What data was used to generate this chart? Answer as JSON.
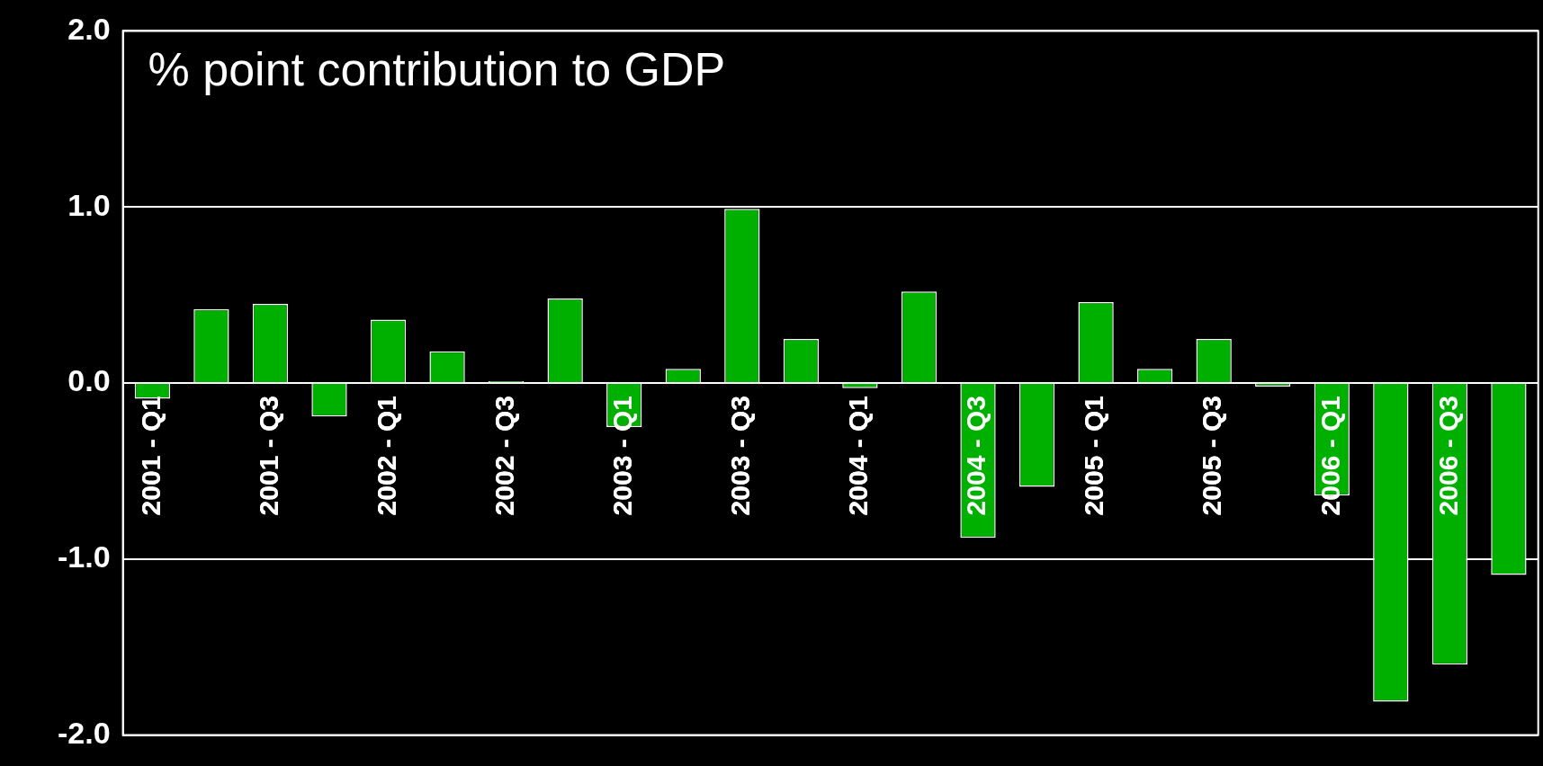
{
  "chart_data": {
    "type": "bar",
    "title": "% point contribution to GDP",
    "categories": [
      "2001 - Q1",
      null,
      "2001 - Q3",
      null,
      "2002 - Q1",
      null,
      "2002 - Q3",
      null,
      "2003 - Q1",
      null,
      "2003 - Q3",
      null,
      "2004 - Q1",
      null,
      "2004 - Q3",
      null,
      "2005 - Q1",
      null,
      "2005 - Q3",
      null,
      "2006 - Q1",
      null,
      "2006 - Q3",
      null
    ],
    "values": [
      -0.09,
      0.42,
      0.45,
      -0.19,
      0.36,
      0.18,
      0.01,
      0.48,
      -0.25,
      0.08,
      0.99,
      0.25,
      -0.03,
      0.52,
      -0.88,
      -0.59,
      0.46,
      0.08,
      0.25,
      -0.02,
      -0.64,
      -1.81,
      -1.6,
      -1.09
    ],
    "color": "#00b000",
    "ylim": [
      -2,
      2
    ],
    "yticks": [
      {
        "value": -2,
        "label": "-2.0"
      },
      {
        "value": -1,
        "label": "-1.0"
      },
      {
        "value": 0,
        "label": "0.0"
      },
      {
        "value": 1,
        "label": "1.0"
      },
      {
        "value": 2,
        "label": "2.0"
      }
    ],
    "grid": "y",
    "legend": false
  }
}
